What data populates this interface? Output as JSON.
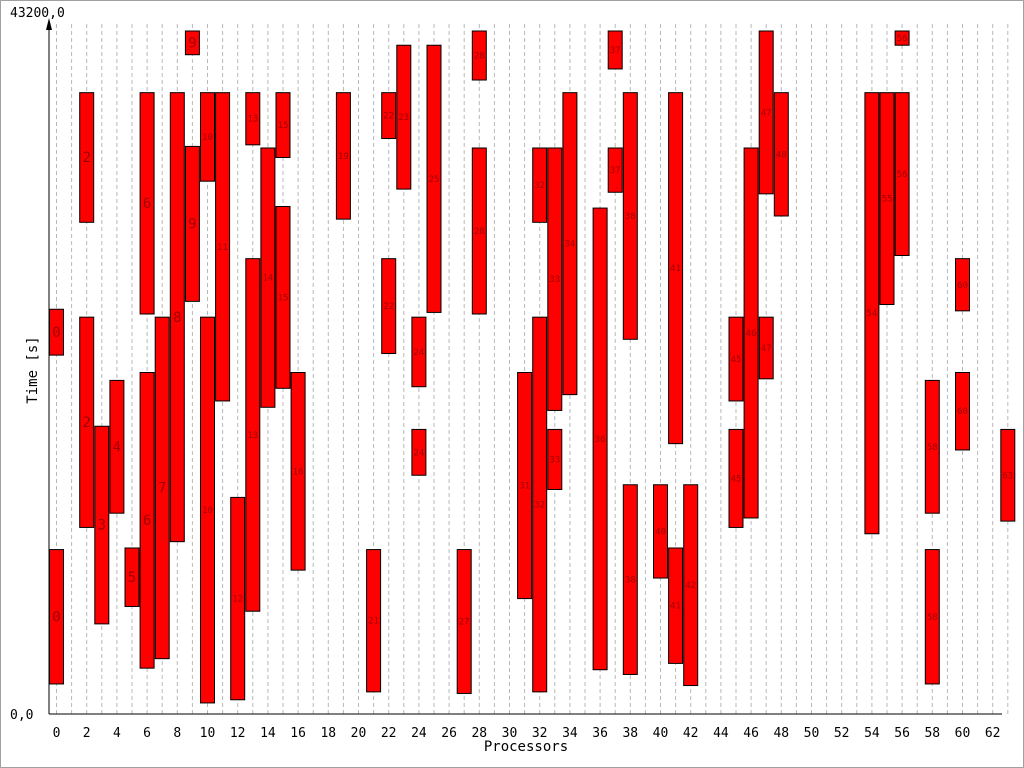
{
  "chart_data": {
    "type": "gantt",
    "title": "",
    "xlabel": "Processors",
    "ylabel": "Time [s]",
    "y_max_label": "43200,0",
    "y_min_label": "0,0",
    "ylim": [
      0,
      43200
    ],
    "x_tick_labels": [
      "0",
      "2",
      "4",
      "6",
      "8",
      "10",
      "12",
      "14",
      "16",
      "18",
      "20",
      "22",
      "24",
      "26",
      "28",
      "30",
      "32",
      "34",
      "36",
      "38",
      "40",
      "42",
      "44",
      "46",
      "48",
      "50",
      "52",
      "54",
      "56",
      "58",
      "60",
      "62"
    ],
    "processor_count": 64,
    "grid": "vertical dashed",
    "bar_color": "#ff0000",
    "label_color": "#990000",
    "tasks": [
      {
        "p": 0,
        "start": 1900,
        "end": 10400,
        "label": "0"
      },
      {
        "p": 0,
        "start": 22700,
        "end": 25600,
        "label": "0"
      },
      {
        "p": 2,
        "start": 11800,
        "end": 25100,
        "label": "2"
      },
      {
        "p": 2,
        "start": 31100,
        "end": 39300,
        "label": "2"
      },
      {
        "p": 3,
        "start": 5700,
        "end": 18200,
        "label": "3"
      },
      {
        "p": 4,
        "start": 12700,
        "end": 21100,
        "label": "4"
      },
      {
        "p": 5,
        "start": 6800,
        "end": 10500,
        "label": "5"
      },
      {
        "p": 6,
        "start": 2900,
        "end": 21600,
        "label": "6"
      },
      {
        "p": 6,
        "start": 25300,
        "end": 39300,
        "label": "6"
      },
      {
        "p": 7,
        "start": 3500,
        "end": 25100,
        "label": "7"
      },
      {
        "p": 8,
        "start": 10900,
        "end": 39300,
        "label": "8"
      },
      {
        "p": 9,
        "start": 26100,
        "end": 35900,
        "label": "9"
      },
      {
        "p": 9,
        "start": 41700,
        "end": 43200,
        "label": "9"
      },
      {
        "p": 10,
        "start": 700,
        "end": 25100,
        "label": "10"
      },
      {
        "p": 10,
        "start": 33700,
        "end": 39300,
        "label": "10"
      },
      {
        "p": 11,
        "start": 19800,
        "end": 39300,
        "label": "11"
      },
      {
        "p": 12,
        "start": 900,
        "end": 13700,
        "label": "12"
      },
      {
        "p": 13,
        "start": 6500,
        "end": 28800,
        "label": "13"
      },
      {
        "p": 13,
        "start": 36000,
        "end": 39300,
        "label": "13"
      },
      {
        "p": 14,
        "start": 19400,
        "end": 35800,
        "label": "14"
      },
      {
        "p": 15,
        "start": 20600,
        "end": 32100,
        "label": "15"
      },
      {
        "p": 15,
        "start": 35200,
        "end": 39300,
        "label": "15"
      },
      {
        "p": 16,
        "start": 9100,
        "end": 21600,
        "label": "16"
      },
      {
        "p": 19,
        "start": 31300,
        "end": 39300,
        "label": "19"
      },
      {
        "p": 21,
        "start": 1400,
        "end": 10400,
        "label": "21"
      },
      {
        "p": 22,
        "start": 22800,
        "end": 28800,
        "label": "22"
      },
      {
        "p": 22,
        "start": 36400,
        "end": 39300,
        "label": "22"
      },
      {
        "p": 23,
        "start": 33200,
        "end": 42300,
        "label": "23"
      },
      {
        "p": 24,
        "start": 20700,
        "end": 25100,
        "label": "24"
      },
      {
        "p": 24,
        "start": 15100,
        "end": 18000,
        "label": "24"
      },
      {
        "p": 25,
        "start": 25400,
        "end": 42300,
        "label": "25"
      },
      {
        "p": 27,
        "start": 1300,
        "end": 10400,
        "label": "27"
      },
      {
        "p": 28,
        "start": 25300,
        "end": 35800,
        "label": "28"
      },
      {
        "p": 28,
        "start": 40100,
        "end": 43200,
        "label": "28"
      },
      {
        "p": 31,
        "start": 7300,
        "end": 21600,
        "label": "31"
      },
      {
        "p": 32,
        "start": 1400,
        "end": 25100,
        "label": "32"
      },
      {
        "p": 32,
        "start": 31100,
        "end": 35800,
        "label": "32"
      },
      {
        "p": 33,
        "start": 14200,
        "end": 18000,
        "label": "33"
      },
      {
        "p": 33,
        "start": 19200,
        "end": 35800,
        "label": "33"
      },
      {
        "p": 34,
        "start": 20200,
        "end": 39300,
        "label": "34"
      },
      {
        "p": 36,
        "start": 2800,
        "end": 32000,
        "label": "36"
      },
      {
        "p": 37,
        "start": 33000,
        "end": 35800,
        "label": "37"
      },
      {
        "p": 37,
        "start": 40800,
        "end": 43200,
        "label": "37"
      },
      {
        "p": 38,
        "start": 2500,
        "end": 14500,
        "label": "38"
      },
      {
        "p": 38,
        "start": 23700,
        "end": 39300,
        "label": "38"
      },
      {
        "p": 40,
        "start": 8600,
        "end": 14500,
        "label": "40"
      },
      {
        "p": 41,
        "start": 3200,
        "end": 10500,
        "label": "41"
      },
      {
        "p": 41,
        "start": 17100,
        "end": 39300,
        "label": "41"
      },
      {
        "p": 42,
        "start": 1800,
        "end": 14500,
        "label": "42"
      },
      {
        "p": 45,
        "start": 11800,
        "end": 18000,
        "label": "45"
      },
      {
        "p": 45,
        "start": 19800,
        "end": 25100,
        "label": "45"
      },
      {
        "p": 46,
        "start": 12400,
        "end": 35800,
        "label": "46"
      },
      {
        "p": 47,
        "start": 21200,
        "end": 25100,
        "label": "47"
      },
      {
        "p": 47,
        "start": 32900,
        "end": 43200,
        "label": "47"
      },
      {
        "p": 48,
        "start": 31500,
        "end": 39300,
        "label": "48"
      },
      {
        "p": 54,
        "start": 11400,
        "end": 39300,
        "label": "54"
      },
      {
        "p": 55,
        "start": 25900,
        "end": 39300,
        "label": "55"
      },
      {
        "p": 56,
        "start": 29000,
        "end": 39300,
        "label": "56"
      },
      {
        "p": 56,
        "start": 42300,
        "end": 43200,
        "label": "56"
      },
      {
        "p": 58,
        "start": 1900,
        "end": 10400,
        "label": "58"
      },
      {
        "p": 58,
        "start": 12700,
        "end": 21100,
        "label": "58"
      },
      {
        "p": 60,
        "start": 16700,
        "end": 21600,
        "label": "60"
      },
      {
        "p": 60,
        "start": 25500,
        "end": 28800,
        "label": "60"
      },
      {
        "p": 63,
        "start": 12200,
        "end": 18000,
        "label": "63"
      }
    ]
  }
}
